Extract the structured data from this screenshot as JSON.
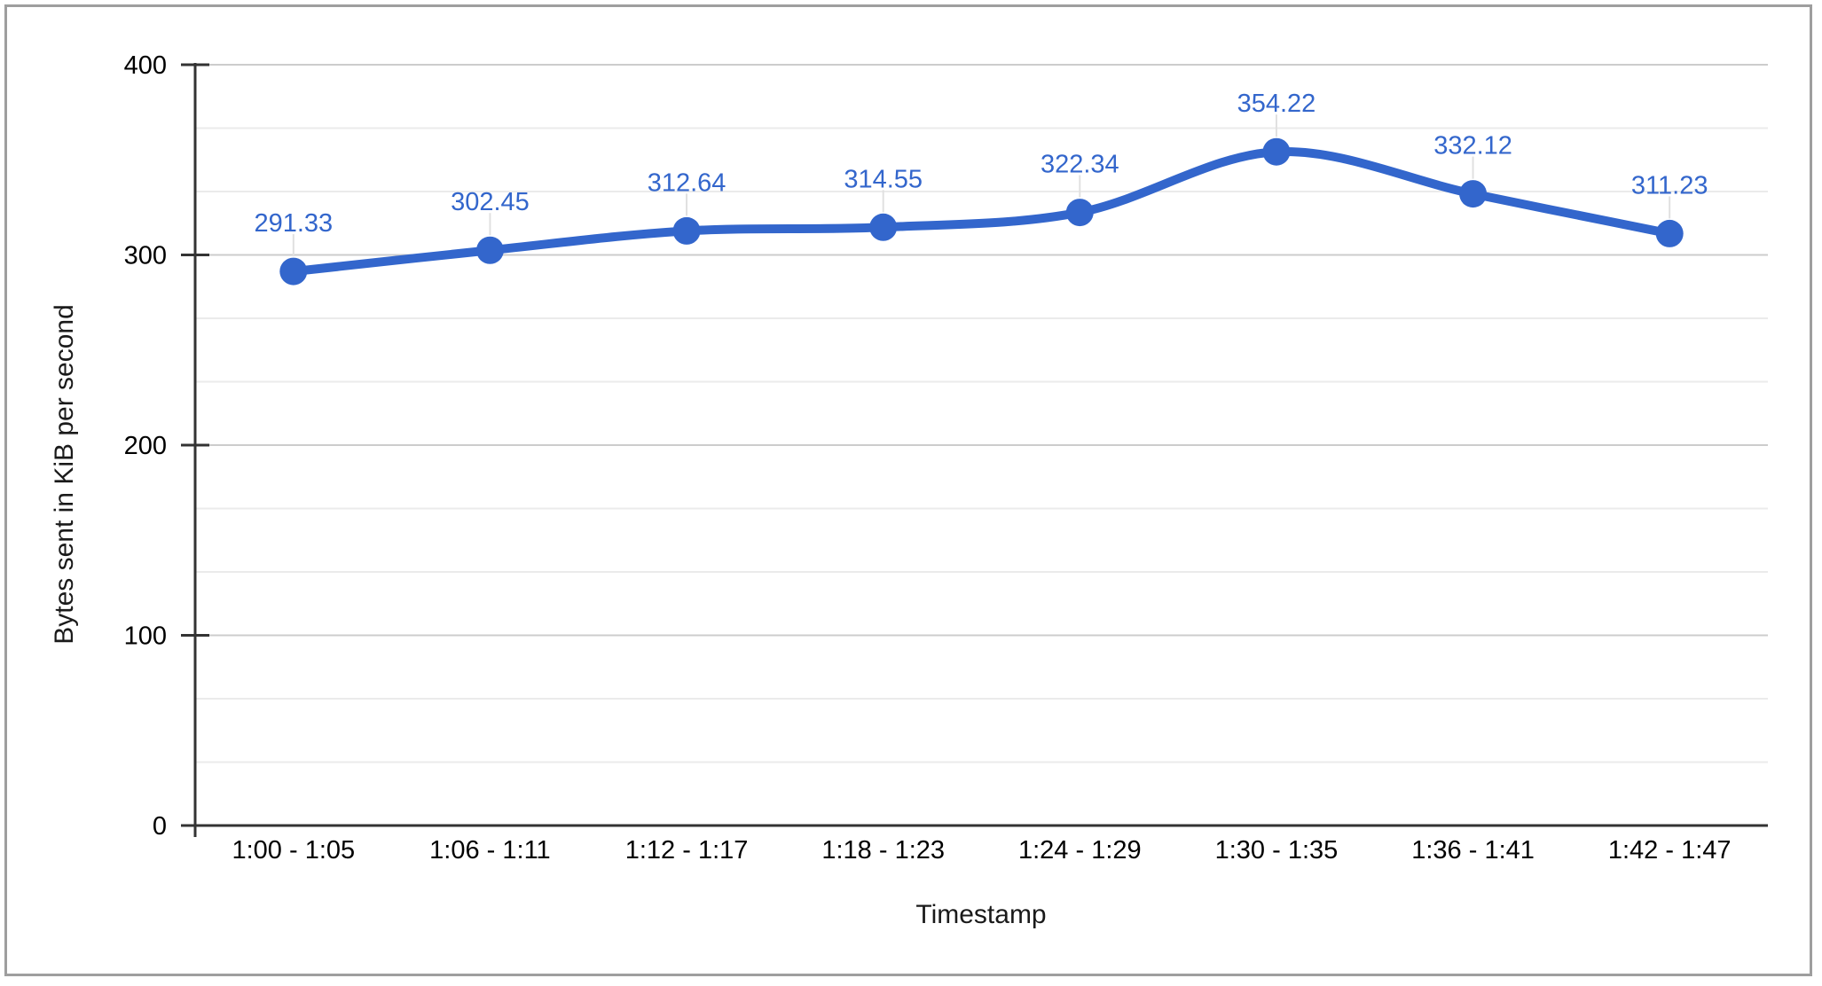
{
  "chart_data": {
    "type": "line",
    "smooth": true,
    "title": "",
    "categories": [
      "1:00 - 1:05",
      "1:06 - 1:11",
      "1:12 - 1:17",
      "1:18 - 1:23",
      "1:24 - 1:29",
      "1:30 - 1:35",
      "1:36 - 1:41",
      "1:42 - 1:47"
    ],
    "values": [
      291.33,
      302.45,
      312.64,
      314.55,
      322.34,
      354.22,
      332.12,
      311.23
    ],
    "data_labels": [
      "291.33",
      "302.45",
      "312.64",
      "314.55",
      "322.34",
      "354.22",
      "332.12",
      "311.23"
    ],
    "xlabel": "Timestamp",
    "ylabel": "Bytes sent in KiB per second",
    "ylim": [
      0,
      400
    ],
    "yticks": [
      0,
      100,
      200,
      300,
      400
    ],
    "ytick_labels": [
      "0",
      "100",
      "200",
      "300",
      "400"
    ],
    "minor_gridlines_between_majors": 2,
    "grid": true,
    "legend": "none",
    "colors": {
      "series": "#3366cc",
      "data_label": "#3366cc",
      "axis_line": "#333333",
      "tick_text": "#000000",
      "gridline_major": "#cccccc",
      "gridline_minor": "#ebebeb",
      "label_stem": "#e0e0e0",
      "frame_border": "#9e9e9e",
      "background": "#ffffff"
    }
  }
}
